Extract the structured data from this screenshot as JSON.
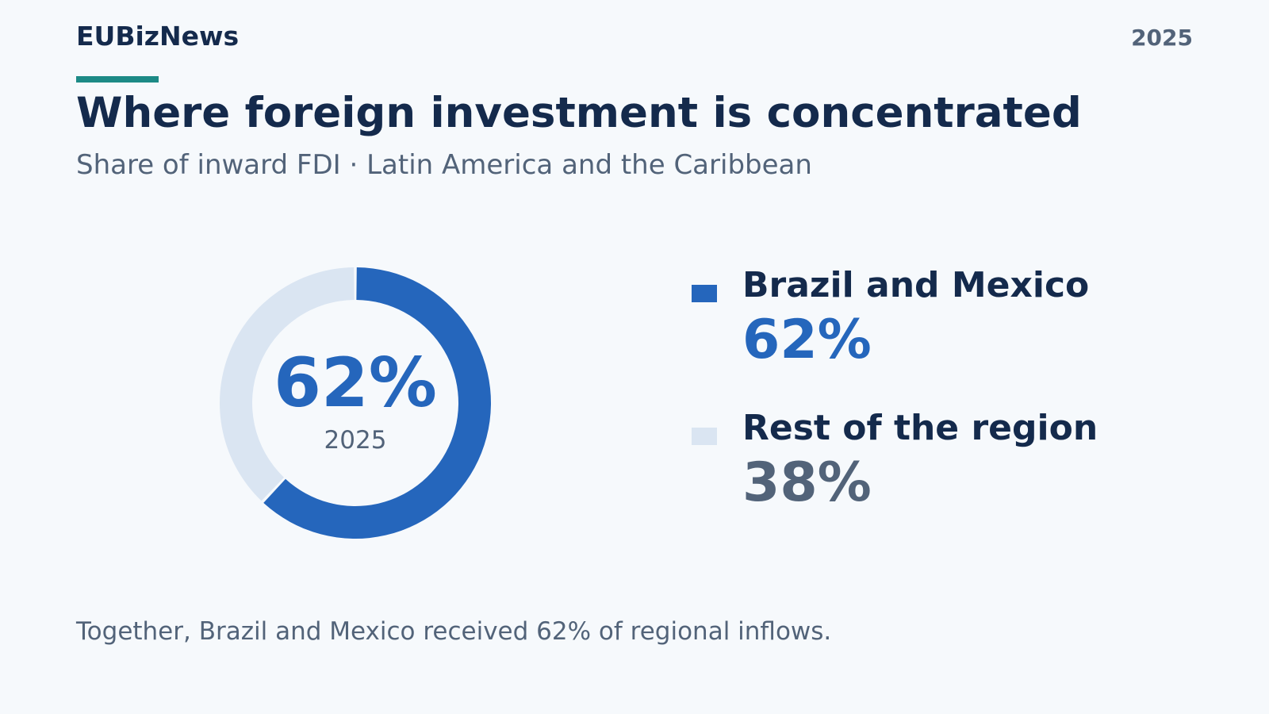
{
  "header": {
    "brand": "EUBizNews",
    "year": "2025"
  },
  "title": "Where foreign investment is concentrated",
  "subtitle": "Share of inward FDI · Latin America and the Caribbean",
  "center": {
    "value": "62%",
    "year": "2025"
  },
  "legend": [
    {
      "label": "Brazil and Mexico",
      "value": "62%"
    },
    {
      "label": "Rest of the region",
      "value": "38%"
    }
  ],
  "note": "Together, Brazil and Mexico received 62% of regional inflows.",
  "colors": {
    "primary": "#2566bc",
    "secondary": "#dae5f2",
    "accent": "#1c8a86",
    "secondary_value_text": "#526379"
  },
  "chart_data": {
    "type": "pie",
    "donut": true,
    "categories": [
      "Brazil and Mexico",
      "Rest of the region"
    ],
    "values": [
      62,
      38
    ],
    "unit": "%",
    "year": 2025,
    "title": "Where foreign investment is concentrated",
    "subtitle": "Share of inward FDI · Latin America and the Caribbean",
    "legend": "right"
  }
}
